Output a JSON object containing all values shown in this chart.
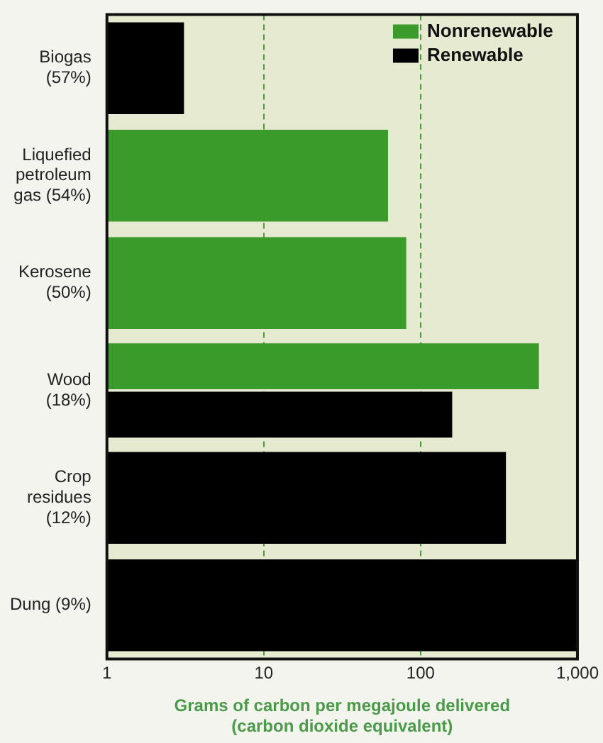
{
  "chart_data": {
    "type": "bar",
    "orientation": "horizontal",
    "xlabel": "Grams of carbon per megajoule delivered (carbon dioxide equivalent)",
    "categories": [
      "Biogas (57%)",
      "Liquefied petroleum gas (54%)",
      "Kerosene (50%)",
      "Wood (18%)",
      "Crop residues (12%)",
      "Dung (9%)"
    ],
    "series": [
      {
        "name": "Nonrenewable",
        "color": "#3a9a2a",
        "values": [
          null,
          62,
          81,
          568,
          null,
          null
        ]
      },
      {
        "name": "Renewable",
        "color": "#000000",
        "values": [
          3.1,
          null,
          null,
          159,
          350,
          1000
        ]
      }
    ],
    "log": "x",
    "xlim": [
      1,
      1000
    ],
    "xticks": [
      1,
      10,
      100,
      {
        "value": 1000,
        "label": "1,000"
      }
    ],
    "grid": "x",
    "legend": "top right"
  }
}
